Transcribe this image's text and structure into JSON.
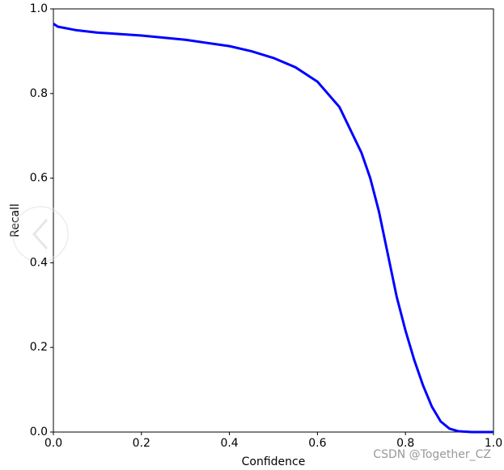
{
  "chart_data": {
    "type": "line",
    "xlabel": "Confidence",
    "ylabel": "Recall",
    "x": [
      0,
      0.01,
      0.05,
      0.1,
      0.2,
      0.3,
      0.4,
      0.45,
      0.5,
      0.55,
      0.6,
      0.65,
      0.7,
      0.72,
      0.74,
      0.76,
      0.78,
      0.8,
      0.82,
      0.84,
      0.86,
      0.88,
      0.9,
      0.92,
      0.95,
      1.0
    ],
    "values": [
      0.965,
      0.958,
      0.95,
      0.944,
      0.937,
      0.927,
      0.912,
      0.9,
      0.884,
      0.862,
      0.828,
      0.768,
      0.66,
      0.6,
      0.52,
      0.42,
      0.32,
      0.24,
      0.17,
      0.11,
      0.06,
      0.025,
      0.008,
      0.002,
      0,
      0
    ],
    "color": "#0000ff",
    "xlim": [
      0,
      1
    ],
    "ylim": [
      0,
      1
    ],
    "xticks": [
      {
        "value": 0,
        "label": "0.0"
      },
      0.2,
      0.4,
      0.6,
      0.8,
      {
        "value": 1,
        "label": "1.0"
      }
    ],
    "yticks": [
      {
        "value": 0,
        "label": "0.0"
      },
      0.2,
      0.4,
      0.6,
      0.8,
      {
        "value": 1,
        "label": "1.0"
      }
    ],
    "grid": false,
    "annotation": "CSDN @Together_CZ"
  }
}
